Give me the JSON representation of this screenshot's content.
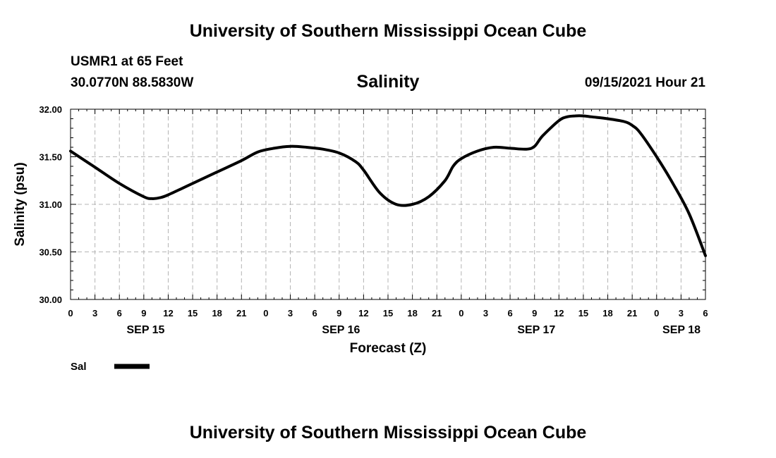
{
  "header": {
    "title_top": "University of Southern Mississippi Ocean Cube",
    "station": "USMR1 at 65 Feet",
    "coords": "30.0770N  88.5830W",
    "date": "09/15/2021 Hour 21",
    "title_bottom": "University of Southern Mississippi Ocean Cube"
  },
  "chart_data": {
    "type": "line",
    "title": "Salinity",
    "xlabel": "Forecast (Z)",
    "ylabel": "Salinity (psu)",
    "ylim": [
      30.0,
      32.0
    ],
    "yticks": [
      "30.00",
      "30.50",
      "31.00",
      "31.50",
      "32.00"
    ],
    "xlim": [
      0,
      78
    ],
    "x_tick_labels": [
      "0",
      "3",
      "6",
      "9",
      "12",
      "15",
      "18",
      "21",
      "0",
      "3",
      "6",
      "9",
      "12",
      "15",
      "18",
      "21",
      "0",
      "3",
      "6",
      "9",
      "12",
      "15",
      "18",
      "21",
      "0",
      "3",
      "6"
    ],
    "day_labels": [
      {
        "label": "SEP 15",
        "hour": 12
      },
      {
        "label": "SEP 16",
        "hour": 36
      },
      {
        "label": "SEP 17",
        "hour": 60
      },
      {
        "label": "SEP 18",
        "hour": 78
      }
    ],
    "grid": true,
    "legend": "bottom-left",
    "series": [
      {
        "name": "Sal",
        "x": [
          0,
          3,
          6,
          9,
          10,
          11,
          12,
          15,
          18,
          21,
          23,
          25,
          27,
          29,
          31,
          33,
          35,
          36,
          38,
          40,
          42,
          44,
          46,
          47,
          48,
          50,
          52,
          54,
          56,
          57,
          58,
          60,
          61,
          62,
          63,
          64,
          66,
          68,
          69,
          70,
          72,
          74,
          76,
          78
        ],
        "values": [
          31.56,
          31.39,
          31.22,
          31.08,
          31.06,
          31.07,
          31.1,
          31.22,
          31.34,
          31.46,
          31.55,
          31.59,
          31.61,
          31.6,
          31.58,
          31.54,
          31.45,
          31.36,
          31.12,
          31.0,
          31.0,
          31.08,
          31.25,
          31.4,
          31.48,
          31.56,
          31.6,
          31.59,
          31.58,
          31.61,
          31.72,
          31.88,
          31.92,
          31.93,
          31.93,
          31.92,
          31.9,
          31.87,
          31.83,
          31.75,
          31.5,
          31.22,
          30.9,
          30.46
        ]
      }
    ]
  }
}
